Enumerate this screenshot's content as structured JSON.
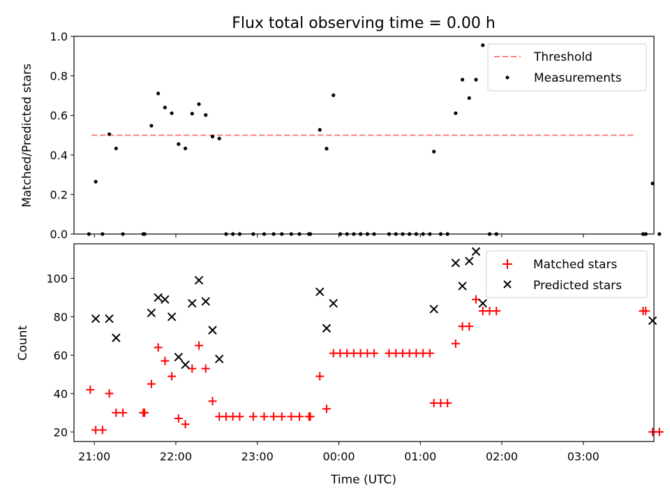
{
  "chart_data": [
    {
      "type": "scatter",
      "title": "Flux total observing time = 0.00 h",
      "xlabel": "",
      "ylabel": "Matched/Predicted stars",
      "ylim": [
        0,
        1.0
      ],
      "yticks": [
        "0.0",
        "0.2",
        "0.4",
        "0.6",
        "0.8",
        "1.0"
      ],
      "xlim": [
        "20:45",
        "03:52"
      ],
      "legend": {
        "placement": "top-right",
        "entries": [
          "Threshold",
          "Measurements"
        ]
      },
      "threshold": {
        "name": "Threshold",
        "value": 0.5,
        "x_start": "20:58",
        "x_end": "03:38",
        "color": "#ff7f7f"
      },
      "series": [
        {
          "name": "Measurements",
          "color": "#000000",
          "points": [
            [
              "20:56",
              0.0
            ],
            [
              "21:01",
              0.265
            ],
            [
              "21:06",
              0.0
            ],
            [
              "21:11",
              0.505
            ],
            [
              "21:16",
              0.433
            ],
            [
              "21:21",
              0.0
            ],
            [
              "21:36",
              0.0
            ],
            [
              "21:37",
              0.0
            ],
            [
              "21:42",
              0.548
            ],
            [
              "21:47",
              0.711
            ],
            [
              "21:52",
              0.64
            ],
            [
              "21:57",
              0.611
            ],
            [
              "22:02",
              0.455
            ],
            [
              "22:07",
              0.433
            ],
            [
              "22:12",
              0.609
            ],
            [
              "22:17",
              0.657
            ],
            [
              "22:22",
              0.602
            ],
            [
              "22:27",
              0.493
            ],
            [
              "22:32",
              0.483
            ],
            [
              "22:37",
              0.0
            ],
            [
              "22:42",
              0.0
            ],
            [
              "22:47",
              0.0
            ],
            [
              "22:57",
              0.0
            ],
            [
              "23:05",
              0.0
            ],
            [
              "23:12",
              0.0
            ],
            [
              "23:18",
              0.0
            ],
            [
              "23:25",
              0.0
            ],
            [
              "23:31",
              0.0
            ],
            [
              "23:38",
              0.0
            ],
            [
              "23:39",
              0.0
            ],
            [
              "23:46",
              0.527
            ],
            [
              "23:51",
              0.432
            ],
            [
              "23:56",
              0.702
            ],
            [
              "00:01",
              0.0
            ],
            [
              "00:06",
              0.0
            ],
            [
              "00:11",
              0.0
            ],
            [
              "00:16",
              0.0
            ],
            [
              "00:21",
              0.0
            ],
            [
              "00:26",
              0.0
            ],
            [
              "00:37",
              0.0
            ],
            [
              "00:42",
              0.0
            ],
            [
              "00:47",
              0.0
            ],
            [
              "00:52",
              0.0
            ],
            [
              "00:57",
              0.0
            ],
            [
              "01:02",
              0.0
            ],
            [
              "01:07",
              0.0
            ],
            [
              "01:10",
              0.417
            ],
            [
              "01:15",
              0.0
            ],
            [
              "01:20",
              0.0
            ],
            [
              "01:26",
              0.611
            ],
            [
              "01:31",
              0.781
            ],
            [
              "01:36",
              0.688
            ],
            [
              "01:41",
              0.781
            ],
            [
              "01:46",
              0.955
            ],
            [
              "01:51",
              0.0
            ],
            [
              "01:56",
              0.0
            ],
            [
              "03:44",
              0.0
            ],
            [
              "03:46",
              0.0
            ],
            [
              "03:51",
              0.256
            ],
            [
              "03:56",
              0.0
            ]
          ]
        }
      ]
    },
    {
      "type": "scatter",
      "title": "",
      "xlabel": "Time (UTC)",
      "ylabel": "Count",
      "ylim": [
        15,
        118
      ],
      "yticks": [
        "20",
        "40",
        "60",
        "80",
        "100"
      ],
      "xticks": [
        "21:00",
        "22:00",
        "23:00",
        "00:00",
        "01:00",
        "02:00",
        "03:00"
      ],
      "xlim": [
        "20:45",
        "03:52"
      ],
      "legend": {
        "placement": "top-right",
        "entries": [
          "Matched stars",
          "Predicted stars"
        ]
      },
      "series": [
        {
          "name": "Matched stars",
          "marker": "plus",
          "color": "#ff0000",
          "points": [
            [
              "20:57",
              42
            ],
            [
              "21:01",
              21
            ],
            [
              "21:06",
              21
            ],
            [
              "21:11",
              40
            ],
            [
              "21:16",
              30
            ],
            [
              "21:21",
              30
            ],
            [
              "21:36",
              30
            ],
            [
              "21:37",
              30
            ],
            [
              "21:42",
              45
            ],
            [
              "21:47",
              64
            ],
            [
              "21:52",
              57
            ],
            [
              "21:57",
              49
            ],
            [
              "22:02",
              27
            ],
            [
              "22:07",
              24
            ],
            [
              "22:12",
              53
            ],
            [
              "22:17",
              65
            ],
            [
              "22:22",
              53
            ],
            [
              "22:27",
              36
            ],
            [
              "22:32",
              28
            ],
            [
              "22:37",
              28
            ],
            [
              "22:42",
              28
            ],
            [
              "22:47",
              28
            ],
            [
              "22:57",
              28
            ],
            [
              "23:05",
              28
            ],
            [
              "23:12",
              28
            ],
            [
              "23:18",
              28
            ],
            [
              "23:25",
              28
            ],
            [
              "23:31",
              28
            ],
            [
              "23:38",
              28
            ],
            [
              "23:39",
              28
            ],
            [
              "23:46",
              49
            ],
            [
              "23:51",
              32
            ],
            [
              "23:56",
              61
            ],
            [
              "00:01",
              61
            ],
            [
              "00:06",
              61
            ],
            [
              "00:11",
              61
            ],
            [
              "00:16",
              61
            ],
            [
              "00:21",
              61
            ],
            [
              "00:26",
              61
            ],
            [
              "00:37",
              61
            ],
            [
              "00:42",
              61
            ],
            [
              "00:47",
              61
            ],
            [
              "00:52",
              61
            ],
            [
              "00:57",
              61
            ],
            [
              "01:02",
              61
            ],
            [
              "01:07",
              61
            ],
            [
              "01:10",
              35
            ],
            [
              "01:15",
              35
            ],
            [
              "01:20",
              35
            ],
            [
              "01:26",
              66
            ],
            [
              "01:31",
              75
            ],
            [
              "01:36",
              75
            ],
            [
              "01:41",
              89
            ],
            [
              "01:46",
              83
            ],
            [
              "01:51",
              83
            ],
            [
              "01:56",
              83
            ],
            [
              "03:44",
              83
            ],
            [
              "03:46",
              83
            ],
            [
              "03:51",
              20
            ],
            [
              "03:56",
              20
            ]
          ]
        },
        {
          "name": "Predicted stars",
          "marker": "x",
          "color": "#000000",
          "points": [
            [
              "21:01",
              79
            ],
            [
              "21:11",
              79
            ],
            [
              "21:16",
              69
            ],
            [
              "21:42",
              82
            ],
            [
              "21:47",
              90
            ],
            [
              "21:52",
              89
            ],
            [
              "21:57",
              80
            ],
            [
              "22:02",
              59
            ],
            [
              "22:07",
              55
            ],
            [
              "22:12",
              87
            ],
            [
              "22:17",
              99
            ],
            [
              "22:22",
              88
            ],
            [
              "22:27",
              73
            ],
            [
              "22:32",
              58
            ],
            [
              "23:46",
              93
            ],
            [
              "23:51",
              74
            ],
            [
              "23:56",
              87
            ],
            [
              "01:10",
              84
            ],
            [
              "01:26",
              108
            ],
            [
              "01:31",
              96
            ],
            [
              "01:36",
              109
            ],
            [
              "01:41",
              114
            ],
            [
              "01:46",
              87
            ],
            [
              "03:51",
              78
            ]
          ]
        }
      ]
    }
  ]
}
